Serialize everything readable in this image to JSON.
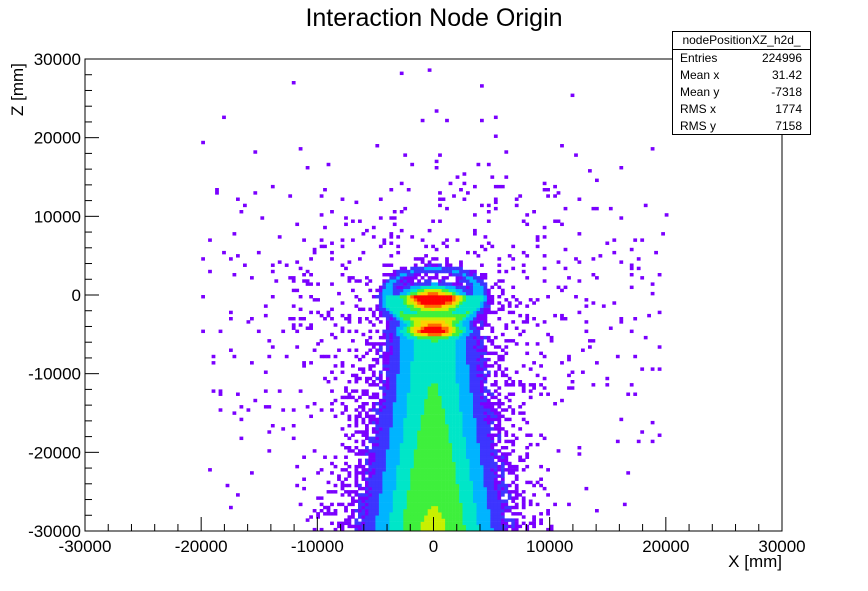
{
  "chart_data": {
    "type": "heatmap",
    "title": "Interaction Node Origin",
    "xlabel": "X [mm]",
    "ylabel": "Z [mm]",
    "xlim": [
      -30000,
      30000
    ],
    "ylim": [
      -30000,
      30000
    ],
    "xticks": [
      "-30000",
      "-20000",
      "-10000",
      "0",
      "10000",
      "20000",
      "30000"
    ],
    "yticks": [
      "30000",
      "20000",
      "10000",
      "0",
      "-10000",
      "-20000",
      "-30000"
    ],
    "palette": [
      "#7a00ff",
      "#3d35ff",
      "#00b4ff",
      "#00e6c8",
      "#3ef03c",
      "#c8f000",
      "#ffd000",
      "#ff6a00",
      "#ff0000"
    ],
    "stats": {
      "name": "nodePositionXZ_h2d_",
      "rows": [
        {
          "label": "Entries",
          "value": "224996"
        },
        {
          "label": "Mean x",
          "value": "31.42"
        },
        {
          "label": "Mean y",
          "value": "-7318"
        },
        {
          "label": "RMS x",
          "value": "1774"
        },
        {
          "label": "RMS y",
          "value": "7158"
        }
      ]
    }
  }
}
